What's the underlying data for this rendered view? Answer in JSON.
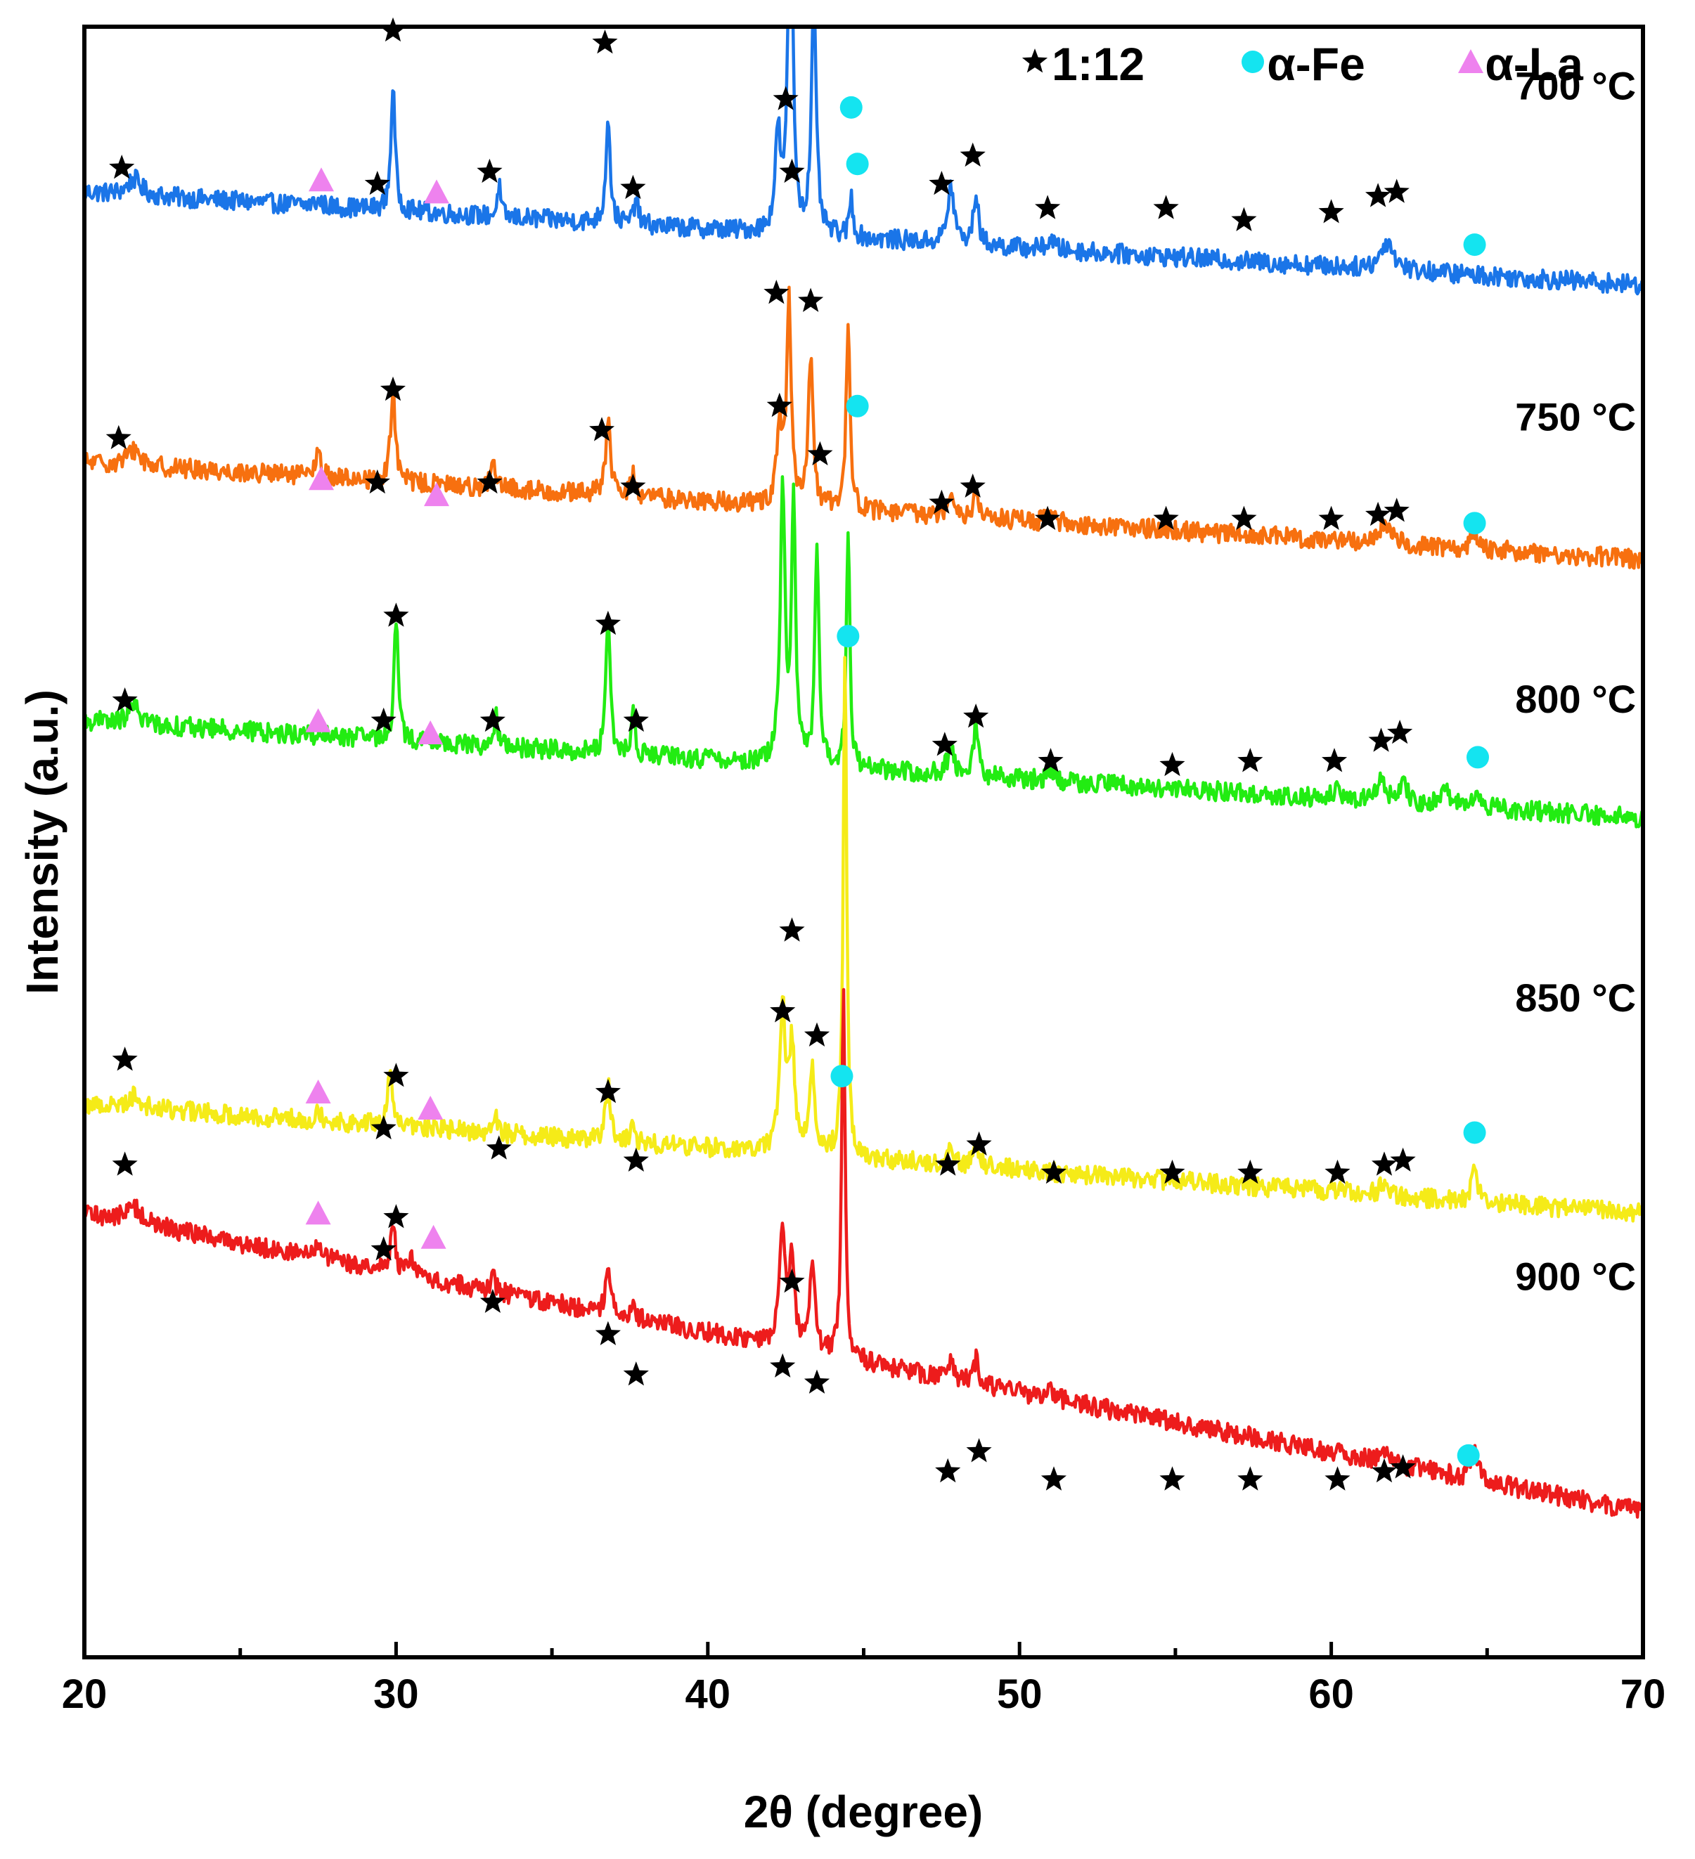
{
  "chart_data": {
    "type": "line",
    "title": "",
    "xlabel": "2θ (degree)",
    "ylabel": "Intensity (a.u.)",
    "xlim": [
      20,
      70
    ],
    "xticks": [
      20,
      30,
      40,
      50,
      60,
      70
    ],
    "xticks_minor": [
      25,
      35,
      45,
      55,
      65
    ],
    "yticks": [],
    "grid": false,
    "legend_position": "top-right",
    "legend": [
      {
        "name": "1:12",
        "marker": "star",
        "color": "#000000"
      },
      {
        "name": "α-Fe",
        "marker": "circle",
        "color": "#14e4f0"
      },
      {
        "name": "α-La",
        "marker": "triangle",
        "color": "#ee82ee"
      }
    ],
    "series": [
      {
        "name": "700 °C",
        "color": "#1a75e8",
        "offset": 0.7,
        "base_start": 0.115,
        "base_end": 0.0,
        "noise": 0.012,
        "peaks": [
          {
            "x": 21.6,
            "h": 0.02,
            "w": 0.5
          },
          {
            "x": 27.5,
            "h": 0.006,
            "w": 0.3
          },
          {
            "x": 29.9,
            "h": 0.155,
            "w": 0.16
          },
          {
            "x": 33.3,
            "h": 0.04,
            "w": 0.12
          },
          {
            "x": 36.8,
            "h": 0.135,
            "w": 0.16
          },
          {
            "x": 37.7,
            "h": 0.035,
            "w": 0.15
          },
          {
            "x": 42.25,
            "h": 0.12,
            "w": 0.2
          },
          {
            "x": 42.65,
            "h": 0.48,
            "w": 0.17
          },
          {
            "x": 43.4,
            "h": 0.29,
            "w": 0.18
          },
          {
            "x": 44.6,
            "h": 0.05,
            "w": 0.13
          },
          {
            "x": 47.8,
            "h": 0.07,
            "w": 0.25
          },
          {
            "x": 48.6,
            "h": 0.065,
            "w": 0.18
          },
          {
            "x": 51.0,
            "h": 0.012,
            "w": 0.3
          },
          {
            "x": 61.8,
            "h": 0.035,
            "w": 0.5
          }
        ]
      },
      {
        "name": "750 °C",
        "color": "#f7700f",
        "offset": 0.36,
        "base_start": 0.12,
        "base_end": 0.0,
        "noise": 0.012,
        "peaks": [
          {
            "x": 21.6,
            "h": 0.02,
            "w": 0.5
          },
          {
            "x": 27.5,
            "h": 0.03,
            "w": 0.2
          },
          {
            "x": 29.9,
            "h": 0.115,
            "w": 0.18
          },
          {
            "x": 33.1,
            "h": 0.035,
            "w": 0.15
          },
          {
            "x": 36.8,
            "h": 0.095,
            "w": 0.18
          },
          {
            "x": 37.6,
            "h": 0.03,
            "w": 0.15
          },
          {
            "x": 42.3,
            "h": 0.1,
            "w": 0.2
          },
          {
            "x": 42.6,
            "h": 0.25,
            "w": 0.17
          },
          {
            "x": 43.3,
            "h": 0.18,
            "w": 0.18
          },
          {
            "x": 44.5,
            "h": 0.23,
            "w": 0.15
          },
          {
            "x": 47.8,
            "h": 0.035,
            "w": 0.25
          },
          {
            "x": 48.6,
            "h": 0.035,
            "w": 0.18
          },
          {
            "x": 51.0,
            "h": 0.01,
            "w": 0.3
          },
          {
            "x": 61.7,
            "h": 0.025,
            "w": 0.4
          },
          {
            "x": 64.6,
            "h": 0.02,
            "w": 0.25
          }
        ]
      },
      {
        "name": "800 °C",
        "color": "#22ec12",
        "offset": 0.04,
        "base_start": 0.12,
        "base_end": 0.0,
        "noise": 0.012,
        "peaks": [
          {
            "x": 21.6,
            "h": 0.02,
            "w": 0.5
          },
          {
            "x": 30.0,
            "h": 0.155,
            "w": 0.15
          },
          {
            "x": 33.2,
            "h": 0.045,
            "w": 0.12
          },
          {
            "x": 36.8,
            "h": 0.175,
            "w": 0.15
          },
          {
            "x": 37.6,
            "h": 0.055,
            "w": 0.13
          },
          {
            "x": 42.4,
            "h": 0.34,
            "w": 0.18
          },
          {
            "x": 42.75,
            "h": 0.33,
            "w": 0.15
          },
          {
            "x": 43.5,
            "h": 0.28,
            "w": 0.15
          },
          {
            "x": 44.5,
            "h": 0.3,
            "w": 0.13
          },
          {
            "x": 47.8,
            "h": 0.035,
            "w": 0.25
          },
          {
            "x": 48.6,
            "h": 0.075,
            "w": 0.15
          },
          {
            "x": 51.0,
            "h": 0.015,
            "w": 0.25
          },
          {
            "x": 60.2,
            "h": 0.012,
            "w": 0.3
          },
          {
            "x": 61.6,
            "h": 0.035,
            "w": 0.25
          },
          {
            "x": 62.3,
            "h": 0.03,
            "w": 0.25
          },
          {
            "x": 63.6,
            "h": 0.02,
            "w": 0.35
          },
          {
            "x": 64.6,
            "h": 0.015,
            "w": 0.3
          }
        ]
      },
      {
        "name": "850 °C",
        "color": "#f5eb18",
        "offset": -0.45,
        "base_start": 0.135,
        "base_end": 0.0,
        "noise": 0.012,
        "peaks": [
          {
            "x": 21.6,
            "h": 0.015,
            "w": 0.5
          },
          {
            "x": 27.5,
            "h": 0.015,
            "w": 0.2
          },
          {
            "x": 29.8,
            "h": 0.06,
            "w": 0.2
          },
          {
            "x": 33.2,
            "h": 0.02,
            "w": 0.15
          },
          {
            "x": 36.8,
            "h": 0.075,
            "w": 0.18
          },
          {
            "x": 37.6,
            "h": 0.02,
            "w": 0.15
          },
          {
            "x": 42.4,
            "h": 0.18,
            "w": 0.22
          },
          {
            "x": 42.7,
            "h": 0.13,
            "w": 0.2
          },
          {
            "x": 43.35,
            "h": 0.11,
            "w": 0.2
          },
          {
            "x": 44.4,
            "h": 0.63,
            "w": 0.13
          },
          {
            "x": 47.8,
            "h": 0.02,
            "w": 0.25
          },
          {
            "x": 48.6,
            "h": 0.035,
            "w": 0.18
          },
          {
            "x": 61.7,
            "h": 0.015,
            "w": 0.35
          },
          {
            "x": 64.6,
            "h": 0.045,
            "w": 0.2
          }
        ]
      },
      {
        "name": "900 °C",
        "color": "#ed1c1c",
        "offset": -0.82,
        "base_start": 0.37,
        "base_end": 0.0,
        "noise": 0.012,
        "peaks": [
          {
            "x": 21.6,
            "h": 0.02,
            "w": 0.6
          },
          {
            "x": 27.5,
            "h": 0.02,
            "w": 0.25
          },
          {
            "x": 29.9,
            "h": 0.055,
            "w": 0.2
          },
          {
            "x": 30.5,
            "h": 0.02,
            "w": 0.2
          },
          {
            "x": 33.1,
            "h": 0.02,
            "w": 0.2
          },
          {
            "x": 36.8,
            "h": 0.065,
            "w": 0.18
          },
          {
            "x": 37.6,
            "h": 0.02,
            "w": 0.18
          },
          {
            "x": 42.4,
            "h": 0.145,
            "w": 0.22
          },
          {
            "x": 42.7,
            "h": 0.1,
            "w": 0.2
          },
          {
            "x": 43.35,
            "h": 0.11,
            "w": 0.2
          },
          {
            "x": 44.35,
            "h": 0.46,
            "w": 0.13
          },
          {
            "x": 47.8,
            "h": 0.02,
            "w": 0.25
          },
          {
            "x": 48.6,
            "h": 0.03,
            "w": 0.18
          },
          {
            "x": 51.0,
            "h": 0.012,
            "w": 0.3
          },
          {
            "x": 61.7,
            "h": 0.015,
            "w": 0.35
          },
          {
            "x": 64.6,
            "h": 0.045,
            "w": 0.2
          }
        ]
      }
    ],
    "annotations": [
      {
        "series": "700 °C",
        "markers": [
          {
            "m": "star",
            "x": 21.2,
            "y": 0.145
          },
          {
            "m": "triangle",
            "x": 27.6,
            "y": 0.13
          },
          {
            "m": "star",
            "x": 29.4,
            "y": 0.125
          },
          {
            "m": "star",
            "x": 29.9,
            "y": 0.315
          },
          {
            "m": "triangle",
            "x": 31.3,
            "y": 0.115
          },
          {
            "m": "star",
            "x": 33.0,
            "y": 0.14
          },
          {
            "m": "star",
            "x": 36.7,
            "y": 0.3
          },
          {
            "m": "star",
            "x": 37.6,
            "y": 0.12
          },
          {
            "m": "star",
            "x": 42.2,
            "y": 0.43
          },
          {
            "m": "star",
            "x": 42.6,
            "y": 0.9
          },
          {
            "m": "star",
            "x": 43.4,
            "y": 0.395
          },
          {
            "m": "circle",
            "x": 44.8,
            "y": 0.15
          },
          {
            "m": "star",
            "x": 47.5,
            "y": 0.125
          },
          {
            "m": "star",
            "x": 48.5,
            "y": 0.16
          },
          {
            "m": "star",
            "x": 50.9,
            "y": 0.095
          },
          {
            "m": "star",
            "x": 54.7,
            "y": 0.095
          },
          {
            "m": "star",
            "x": 57.2,
            "y": 0.08
          },
          {
            "m": "star",
            "x": 60.0,
            "y": 0.09
          },
          {
            "m": "star",
            "x": 61.5,
            "y": 0.11
          },
          {
            "m": "star",
            "x": 62.1,
            "y": 0.115
          },
          {
            "m": "circle",
            "x": 64.6,
            "y": 0.05
          }
        ]
      },
      {
        "series": "750 °C",
        "markers": [
          {
            "m": "star",
            "x": 21.1,
            "y": 0.15
          },
          {
            "m": "triangle",
            "x": 27.6,
            "y": 0.1
          },
          {
            "m": "star",
            "x": 29.4,
            "y": 0.095
          },
          {
            "m": "star",
            "x": 29.9,
            "y": 0.21
          },
          {
            "m": "triangle",
            "x": 31.3,
            "y": 0.08
          },
          {
            "m": "star",
            "x": 33.0,
            "y": 0.095
          },
          {
            "m": "star",
            "x": 36.6,
            "y": 0.16
          },
          {
            "m": "star",
            "x": 37.6,
            "y": 0.09
          },
          {
            "m": "star",
            "x": 42.2,
            "y": 0.33
          },
          {
            "m": "star",
            "x": 42.5,
            "y": 0.57
          },
          {
            "m": "star",
            "x": 43.3,
            "y": 0.32
          },
          {
            "m": "circle",
            "x": 44.6,
            "y": 0.56
          },
          {
            "m": "star",
            "x": 47.5,
            "y": 0.07
          },
          {
            "m": "star",
            "x": 48.5,
            "y": 0.09
          },
          {
            "m": "star",
            "x": 50.9,
            "y": 0.05
          },
          {
            "m": "star",
            "x": 54.7,
            "y": 0.05
          },
          {
            "m": "star",
            "x": 57.2,
            "y": 0.05
          },
          {
            "m": "star",
            "x": 60.0,
            "y": 0.05
          },
          {
            "m": "star",
            "x": 61.5,
            "y": 0.055
          },
          {
            "m": "star",
            "x": 62.1,
            "y": 0.06
          },
          {
            "m": "circle",
            "x": 64.6,
            "y": 0.045
          }
        ]
      },
      {
        "series": "800 °C",
        "markers": [
          {
            "m": "star",
            "x": 21.3,
            "y": 0.145
          },
          {
            "m": "triangle",
            "x": 27.5,
            "y": 0.12
          },
          {
            "m": "star",
            "x": 29.6,
            "y": 0.12
          },
          {
            "m": "star",
            "x": 30.0,
            "y": 0.25
          },
          {
            "m": "triangle",
            "x": 31.1,
            "y": 0.105
          },
          {
            "m": "star",
            "x": 33.1,
            "y": 0.12
          },
          {
            "m": "star",
            "x": 36.8,
            "y": 0.24
          },
          {
            "m": "star",
            "x": 37.7,
            "y": 0.12
          },
          {
            "m": "star",
            "x": 42.3,
            "y": 0.51
          },
          {
            "m": "star",
            "x": 42.7,
            "y": 0.8
          },
          {
            "m": "star",
            "x": 43.6,
            "y": 0.45
          },
          {
            "m": "circle",
            "x": 44.8,
            "y": 0.51
          },
          {
            "m": "star",
            "x": 47.6,
            "y": 0.09
          },
          {
            "m": "star",
            "x": 48.6,
            "y": 0.125
          },
          {
            "m": "star",
            "x": 51.0,
            "y": 0.07
          },
          {
            "m": "star",
            "x": 54.9,
            "y": 0.065
          },
          {
            "m": "star",
            "x": 57.4,
            "y": 0.07
          },
          {
            "m": "star",
            "x": 60.1,
            "y": 0.07
          },
          {
            "m": "star",
            "x": 61.6,
            "y": 0.095
          },
          {
            "m": "star",
            "x": 62.2,
            "y": 0.105
          },
          {
            "m": "circle",
            "x": 64.7,
            "y": 0.075
          }
        ]
      },
      {
        "series": "850 °C",
        "markers": [
          {
            "m": "star",
            "x": 21.3,
            "y": 0.19
          },
          {
            "m": "triangle",
            "x": 27.5,
            "y": 0.15
          },
          {
            "m": "star",
            "x": 29.6,
            "y": 0.105
          },
          {
            "m": "star",
            "x": 30.0,
            "y": 0.17
          },
          {
            "m": "triangle",
            "x": 31.1,
            "y": 0.13
          },
          {
            "m": "star",
            "x": 33.3,
            "y": 0.08
          },
          {
            "m": "star",
            "x": 36.8,
            "y": 0.15
          },
          {
            "m": "star",
            "x": 37.7,
            "y": 0.065
          },
          {
            "m": "star",
            "x": 42.4,
            "y": 0.25
          },
          {
            "m": "star",
            "x": 42.7,
            "y": 0.35
          },
          {
            "m": "star",
            "x": 43.5,
            "y": 0.22
          },
          {
            "m": "circle",
            "x": 44.5,
            "y": 0.715
          },
          {
            "m": "star",
            "x": 47.7,
            "y": 0.06
          },
          {
            "m": "star",
            "x": 48.7,
            "y": 0.085
          },
          {
            "m": "star",
            "x": 51.1,
            "y": 0.05
          },
          {
            "m": "star",
            "x": 54.9,
            "y": 0.05
          },
          {
            "m": "star",
            "x": 57.4,
            "y": 0.05
          },
          {
            "m": "star",
            "x": 60.2,
            "y": 0.05
          },
          {
            "m": "star",
            "x": 61.7,
            "y": 0.06
          },
          {
            "m": "star",
            "x": 62.3,
            "y": 0.065
          },
          {
            "m": "circle",
            "x": 64.6,
            "y": 0.1
          }
        ]
      },
      {
        "series": "900 °C",
        "markers": [
          {
            "m": "star",
            "x": 21.3,
            "y": 0.43
          },
          {
            "m": "triangle",
            "x": 27.5,
            "y": 0.37
          },
          {
            "m": "star",
            "x": 29.6,
            "y": 0.325
          },
          {
            "m": "star",
            "x": 30.0,
            "y": 0.365
          },
          {
            "m": "triangle",
            "x": 31.2,
            "y": 0.34
          },
          {
            "m": "star",
            "x": 33.1,
            "y": 0.26
          },
          {
            "m": "star",
            "x": 36.8,
            "y": 0.22
          },
          {
            "m": "star",
            "x": 37.7,
            "y": 0.17
          },
          {
            "m": "star",
            "x": 42.4,
            "y": 0.18
          },
          {
            "m": "star",
            "x": 42.7,
            "y": 0.285
          },
          {
            "m": "star",
            "x": 43.5,
            "y": 0.16
          },
          {
            "m": "circle",
            "x": 44.3,
            "y": 0.54
          },
          {
            "m": "star",
            "x": 47.7,
            "y": 0.05
          },
          {
            "m": "star",
            "x": 48.7,
            "y": 0.075
          },
          {
            "m": "star",
            "x": 51.1,
            "y": 0.04
          },
          {
            "m": "star",
            "x": 54.9,
            "y": 0.04
          },
          {
            "m": "star",
            "x": 57.4,
            "y": 0.04
          },
          {
            "m": "star",
            "x": 60.2,
            "y": 0.04
          },
          {
            "m": "star",
            "x": 61.7,
            "y": 0.05
          },
          {
            "m": "star",
            "x": 62.3,
            "y": 0.055
          },
          {
            "m": "circle",
            "x": 64.4,
            "y": 0.07
          }
        ]
      }
    ],
    "curve_labels": [
      {
        "text": "700 °C",
        "x": 65.9,
        "y": 0.93
      },
      {
        "text": "750 °C",
        "x": 65.9,
        "y": 0.52
      },
      {
        "text": "800 °C",
        "x": 65.9,
        "y": 0.17
      },
      {
        "text": "850 °C",
        "x": 65.9,
        "y": -0.2
      },
      {
        "text": "900 °C",
        "x": 65.9,
        "y": -0.545
      }
    ]
  }
}
